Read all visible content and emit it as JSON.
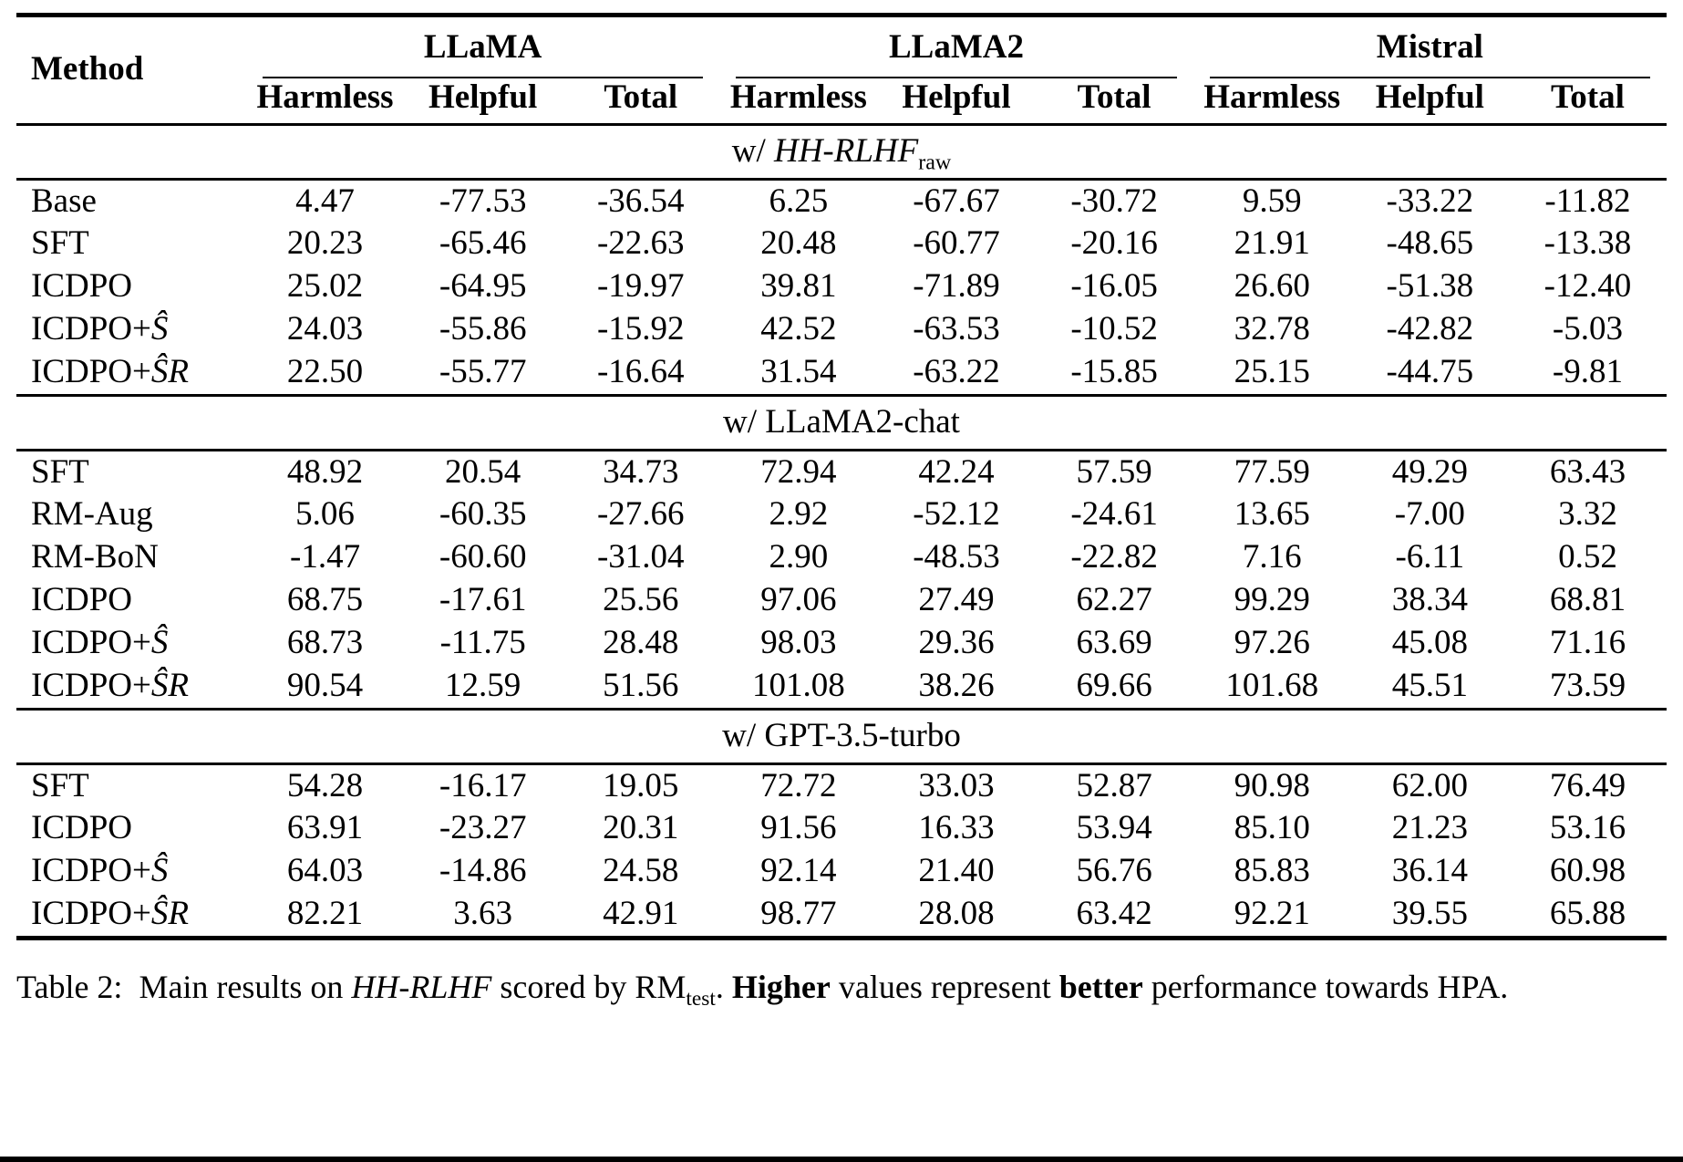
{
  "table": {
    "method_header": "Method",
    "groups": [
      {
        "label": "LLaMA"
      },
      {
        "label": "LLaMA2"
      },
      {
        "label": "Mistral"
      }
    ],
    "subcolumns": [
      "Harmless",
      "Helpful",
      "Total"
    ],
    "sections": [
      {
        "title": "w/ $HH-RLHF$_{raw}",
        "rows": [
          {
            "method": "Base",
            "values": [
              "4.47",
              "-77.53",
              "-36.54",
              "6.25",
              "-67.67",
              "-30.72",
              "9.59",
              "-33.22",
              "-11.82"
            ]
          },
          {
            "method": "SFT",
            "values": [
              "20.23",
              "-65.46",
              "-22.63",
              "20.48",
              "-60.77",
              "-20.16",
              "21.91",
              "-48.65",
              "-13.38"
            ]
          },
          {
            "method": "ICDPO",
            "values": [
              "25.02",
              "-64.95",
              "-19.97",
              "39.81",
              "-71.89",
              "-16.05",
              "26.60",
              "-51.38",
              "-12.40"
            ]
          },
          {
            "method": "ICDPO+$Ŝ$",
            "values": [
              "24.03",
              "-55.86",
              "-15.92",
              "42.52",
              "-63.53",
              "-10.52",
              "32.78",
              "-42.82",
              "-5.03"
            ]
          },
          {
            "method": "ICDPO+$ŜR$",
            "values": [
              "22.50",
              "-55.77",
              "-16.64",
              "31.54",
              "-63.22",
              "-15.85",
              "25.15",
              "-44.75",
              "-9.81"
            ]
          }
        ]
      },
      {
        "title": "w/ LLaMA2-chat",
        "rows": [
          {
            "method": "SFT",
            "values": [
              "48.92",
              "20.54",
              "34.73",
              "72.94",
              "42.24",
              "57.59",
              "77.59",
              "49.29",
              "63.43"
            ]
          },
          {
            "method": "RM-Aug",
            "values": [
              "5.06",
              "-60.35",
              "-27.66",
              "2.92",
              "-52.12",
              "-24.61",
              "13.65",
              "-7.00",
              "3.32"
            ]
          },
          {
            "method": "RM-BoN",
            "values": [
              "-1.47",
              "-60.60",
              "-31.04",
              "2.90",
              "-48.53",
              "-22.82",
              "7.16",
              "-6.11",
              "0.52"
            ]
          },
          {
            "method": "ICDPO",
            "values": [
              "68.75",
              "-17.61",
              "25.56",
              "97.06",
              "27.49",
              "62.27",
              "99.29",
              "38.34",
              "68.81"
            ]
          },
          {
            "method": "ICDPO+$Ŝ$",
            "values": [
              "68.73",
              "-11.75",
              "28.48",
              "98.03",
              "29.36",
              "63.69",
              "97.26",
              "45.08",
              "71.16"
            ]
          },
          {
            "method": "ICDPO+$ŜR$",
            "values": [
              "90.54",
              "12.59",
              "51.56",
              "101.08",
              "38.26",
              "69.66",
              "101.68",
              "45.51",
              "73.59"
            ]
          }
        ]
      },
      {
        "title": "w/ GPT-3.5-turbo",
        "rows": [
          {
            "method": "SFT",
            "values": [
              "54.28",
              "-16.17",
              "19.05",
              "72.72",
              "33.03",
              "52.87",
              "90.98",
              "62.00",
              "76.49"
            ]
          },
          {
            "method": "ICDPO",
            "values": [
              "63.91",
              "-23.27",
              "20.31",
              "91.56",
              "16.33",
              "53.94",
              "85.10",
              "21.23",
              "53.16"
            ]
          },
          {
            "method": "ICDPO+$Ŝ$",
            "values": [
              "64.03",
              "-14.86",
              "24.58",
              "92.14",
              "21.40",
              "56.76",
              "85.83",
              "36.14",
              "60.98"
            ]
          },
          {
            "method": "ICDPO+$ŜR$",
            "values": [
              "82.21",
              "3.63",
              "42.91",
              "98.77",
              "28.08",
              "63.42",
              "92.21",
              "39.55",
              "65.88"
            ]
          }
        ]
      }
    ]
  },
  "caption": "Table 2:  Main results on $HH-RLHF$ scored by RM_{test}. **Higher** values represent **better** performance towards HPA."
}
